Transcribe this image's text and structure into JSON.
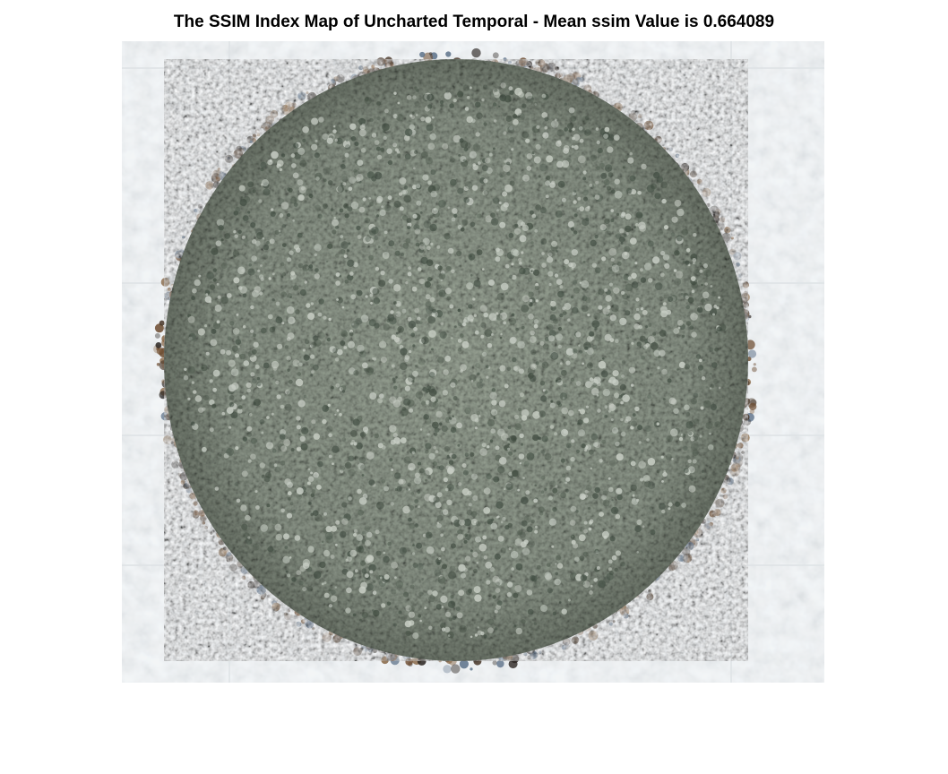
{
  "figure": {
    "title": "The SSIM Index Map of Uncharted Temporal - Mean ssim Value is 0.664089"
  },
  "image": {
    "description_name": "ssim-index-map",
    "colors": {
      "background": "#f3f5f6",
      "texture_light": "#d9dee2",
      "disc_fill": "#8f9a8c",
      "disc_light": "#c9cfc6",
      "disc_dark": "#3e4a3f",
      "rim_brown": "#6b4a2e",
      "rim_dark": "#2a2420",
      "rim_blue": "#5b7088"
    }
  }
}
